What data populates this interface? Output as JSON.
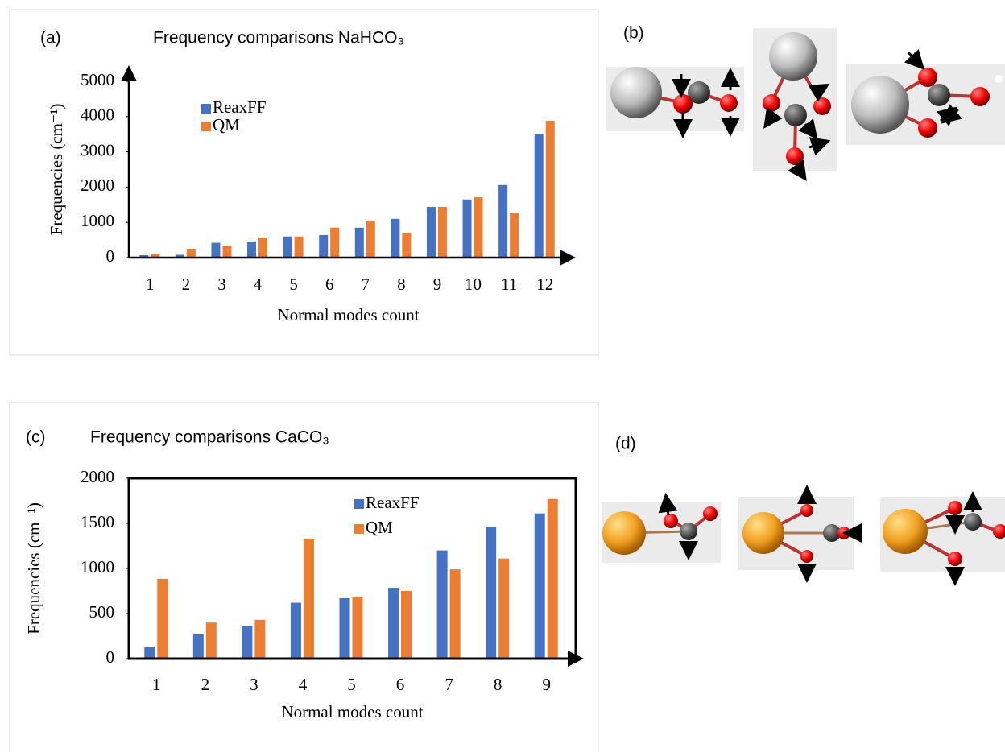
{
  "chart_data": [
    {
      "type": "bar",
      "panel_label": "(a)",
      "title": "Frequency comparisons NaHCO₃",
      "ylabel": "Frequencies (cm⁻¹)",
      "xlabel": "Normal modes count",
      "categories": [
        "1",
        "2",
        "3",
        "4",
        "5",
        "6",
        "7",
        "8",
        "9",
        "10",
        "11",
        "12"
      ],
      "series": [
        {
          "name": "ReaxFF",
          "color": "#4472c4",
          "values": [
            70,
            80,
            420,
            460,
            600,
            640,
            850,
            1100,
            1440,
            1650,
            2060,
            3500
          ]
        },
        {
          "name": "QM",
          "color": "#ed7d31",
          "values": [
            100,
            250,
            340,
            570,
            600,
            850,
            1050,
            710,
            1440,
            1710,
            1260,
            3880
          ]
        }
      ],
      "ylim": [
        0,
        5000
      ],
      "yticks": [
        0,
        1000,
        2000,
        3000,
        4000,
        5000
      ],
      "grid": false
    },
    {
      "type": "bar",
      "panel_label": "(c)",
      "title": "Frequency comparisons CaCO₃",
      "ylabel": "Frequencies (cm⁻¹)",
      "xlabel": "Normal modes count",
      "categories": [
        "1",
        "2",
        "3",
        "4",
        "5",
        "6",
        "7",
        "8",
        "9"
      ],
      "series": [
        {
          "name": "ReaxFF",
          "color": "#4472c4",
          "values": [
            125,
            270,
            365,
            620,
            670,
            785,
            1200,
            1460,
            1610
          ]
        },
        {
          "name": "QM",
          "color": "#ed7d31",
          "values": [
            885,
            400,
            430,
            1330,
            685,
            750,
            990,
            1110,
            1770
          ]
        }
      ],
      "ylim": [
        0,
        2000
      ],
      "yticks": [
        0,
        500,
        1000,
        1500,
        2000
      ],
      "grid": false
    }
  ],
  "image_labels": [
    "(b)",
    "(d)"
  ]
}
